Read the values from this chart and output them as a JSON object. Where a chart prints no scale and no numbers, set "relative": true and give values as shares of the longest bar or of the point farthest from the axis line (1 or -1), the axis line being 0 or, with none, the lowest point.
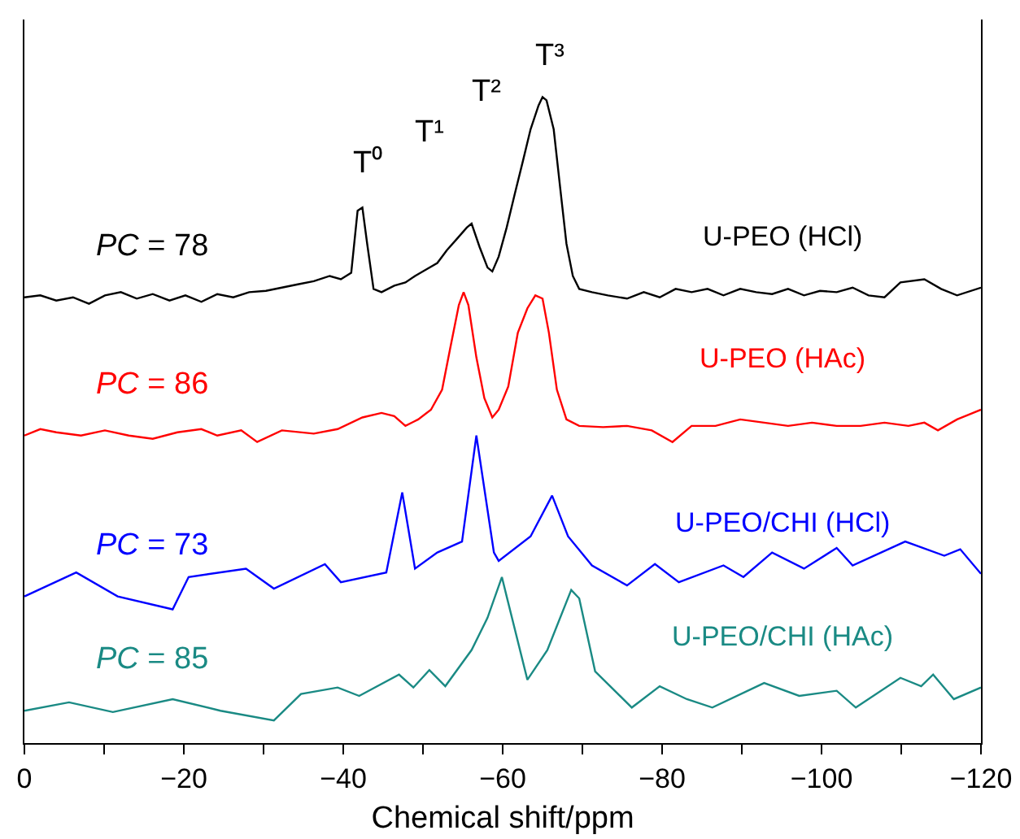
{
  "chart_data": {
    "type": "line",
    "relative": true,
    "xlabel": "Chemical shift/ppm",
    "xlim": [
      0,
      -120
    ],
    "xticks": [
      0,
      {
        "value": -10,
        "label": null
      },
      -20,
      {
        "value": -30,
        "label": null
      },
      -40,
      {
        "value": -50,
        "label": null
      },
      -60,
      {
        "value": -70,
        "label": null
      },
      -80,
      {
        "value": -90,
        "label": null
      },
      -100,
      {
        "value": -110,
        "label": null
      },
      -120
    ],
    "grid": false,
    "legend": false,
    "marker": "none",
    "line_style": "solid",
    "series": [
      {
        "name": "U-PEO (HCl)",
        "color": "#000000",
        "x": [
          0,
          -2.0,
          -4.0,
          -6.1,
          -8.1,
          -10.1,
          -12.1,
          -14.1,
          -16.1,
          -18.2,
          -20.2,
          -22.2,
          -24.2,
          -26.2,
          -28.2,
          -30.3,
          -32.3,
          -34.3,
          -36.3,
          -38.3,
          -39.7,
          -41.0,
          -41.8,
          -42.4,
          -43.0,
          -43.8,
          -44.8,
          -46.4,
          -47.8,
          -49.0,
          -50.4,
          -51.8,
          -53.0,
          -54.3,
          -55.5,
          -56.1,
          -57.1,
          -58.1,
          -58.7,
          -59.5,
          -60.5,
          -61.5,
          -62.5,
          -63.5,
          -64.5,
          -65.0,
          -65.5,
          -66.4,
          -67.2,
          -68.0,
          -68.8,
          -69.6,
          -71.2,
          -73.2,
          -75.6,
          -77.7,
          -79.7,
          -81.7,
          -83.7,
          -85.7,
          -87.7,
          -89.8,
          -91.8,
          -93.8,
          -95.8,
          -97.8,
          -99.8,
          -101.9,
          -103.9,
          -105.9,
          -107.9,
          -109.9,
          -112.9,
          -115.0,
          -117.0,
          -120
        ],
        "values": [
          0.69,
          0.693,
          0.685,
          0.69,
          0.68,
          0.693,
          0.698,
          0.688,
          0.695,
          0.685,
          0.693,
          0.683,
          0.695,
          0.69,
          0.698,
          0.7,
          0.705,
          0.71,
          0.715,
          0.723,
          0.718,
          0.728,
          0.824,
          0.829,
          0.773,
          0.703,
          0.698,
          0.708,
          0.713,
          0.723,
          0.733,
          0.743,
          0.763,
          0.781,
          0.798,
          0.804,
          0.768,
          0.736,
          0.73,
          0.753,
          0.798,
          0.849,
          0.899,
          0.95,
          0.987,
          1.0,
          0.995,
          0.95,
          0.861,
          0.773,
          0.723,
          0.703,
          0.698,
          0.693,
          0.688,
          0.698,
          0.69,
          0.703,
          0.698,
          0.703,
          0.693,
          0.703,
          0.698,
          0.695,
          0.703,
          0.693,
          0.7,
          0.698,
          0.705,
          0.693,
          0.69,
          0.713,
          0.718,
          0.703,
          0.693,
          0.705
        ]
      },
      {
        "name": "U-PEO (HAc)",
        "color": "#ff0000",
        "x": [
          0,
          -2.0,
          -4.0,
          -7.1,
          -10.1,
          -13.1,
          -16.1,
          -19.2,
          -22.2,
          -24.2,
          -27.2,
          -29.2,
          -32.3,
          -36.3,
          -39.3,
          -42.4,
          -44.8,
          -46.4,
          -47.8,
          -49.4,
          -51.0,
          -52.4,
          -53.4,
          -54.5,
          -55.1,
          -55.7,
          -56.7,
          -57.7,
          -58.7,
          -59.5,
          -60.7,
          -61.9,
          -63.1,
          -64.1,
          -65.0,
          -65.8,
          -66.8,
          -68.0,
          -69.6,
          -72.6,
          -75.6,
          -78.7,
          -81.3,
          -83.7,
          -86.7,
          -89.8,
          -92.8,
          -95.8,
          -98.8,
          -101.9,
          -104.9,
          -107.9,
          -110.9,
          -112.9,
          -114.6,
          -117.0,
          -120
        ],
        "values": [
          0.476,
          0.486,
          0.481,
          0.476,
          0.484,
          0.476,
          0.471,
          0.481,
          0.486,
          0.476,
          0.484,
          0.466,
          0.484,
          0.479,
          0.486,
          0.504,
          0.511,
          0.506,
          0.491,
          0.501,
          0.516,
          0.547,
          0.61,
          0.678,
          0.698,
          0.678,
          0.597,
          0.534,
          0.504,
          0.516,
          0.552,
          0.635,
          0.673,
          0.693,
          0.688,
          0.635,
          0.547,
          0.501,
          0.491,
          0.489,
          0.491,
          0.484,
          0.466,
          0.491,
          0.491,
          0.501,
          0.496,
          0.491,
          0.496,
          0.491,
          0.491,
          0.496,
          0.491,
          0.496,
          0.484,
          0.501,
          0.516
        ]
      },
      {
        "name": "U-PEO/CHI (HCl)",
        "color": "#0000ff",
        "x": [
          0,
          -6.5,
          -11.7,
          -18.6,
          -20.6,
          -27.8,
          -31.3,
          -37.7,
          -39.7,
          -45.4,
          -47.4,
          -49.0,
          -51.8,
          -54.9,
          -56.7,
          -58.9,
          -59.5,
          -63.5,
          -66.2,
          -68.2,
          -71.2,
          -75.6,
          -79.1,
          -82.1,
          -87.7,
          -90.2,
          -93.8,
          -97.8,
          -101.9,
          -103.9,
          -110.5,
          -115.4,
          -117.4,
          -120
        ],
        "values": [
          0.227,
          0.264,
          0.227,
          0.207,
          0.257,
          0.27,
          0.239,
          0.277,
          0.249,
          0.264,
          0.388,
          0.27,
          0.295,
          0.312,
          0.476,
          0.295,
          0.282,
          0.32,
          0.383,
          0.32,
          0.275,
          0.244,
          0.277,
          0.249,
          0.275,
          0.257,
          0.295,
          0.27,
          0.302,
          0.275,
          0.312,
          0.29,
          0.3,
          0.262
        ]
      },
      {
        "name": "U-PEO/CHI (HAc)",
        "color": "#1a8a84",
        "x": [
          0,
          -5.6,
          -11.1,
          -18.6,
          -24.6,
          -31.3,
          -34.7,
          -39.3,
          -42.0,
          -47.0,
          -48.8,
          -50.8,
          -52.8,
          -56.1,
          -58.1,
          -59.9,
          -60.5,
          -63.1,
          -65.6,
          -68.6,
          -69.6,
          -71.6,
          -76.2,
          -79.7,
          -83.1,
          -86.3,
          -92.8,
          -97.2,
          -101.9,
          -104.3,
          -109.9,
          -112.5,
          -114.0,
          -116.6,
          -120
        ],
        "values": [
          0.05,
          0.063,
          0.048,
          0.068,
          0.05,
          0.035,
          0.076,
          0.086,
          0.073,
          0.106,
          0.086,
          0.113,
          0.088,
          0.144,
          0.194,
          0.257,
          0.227,
          0.098,
          0.144,
          0.237,
          0.224,
          0.111,
          0.055,
          0.088,
          0.068,
          0.055,
          0.093,
          0.073,
          0.081,
          0.055,
          0.101,
          0.088,
          0.106,
          0.068,
          0.086
        ]
      }
    ],
    "annotations": [
      "PC = 78",
      "PC = 86",
      "PC = 73",
      "PC = 85",
      "T⁰",
      "T¹",
      "T²",
      "T³"
    ]
  }
}
